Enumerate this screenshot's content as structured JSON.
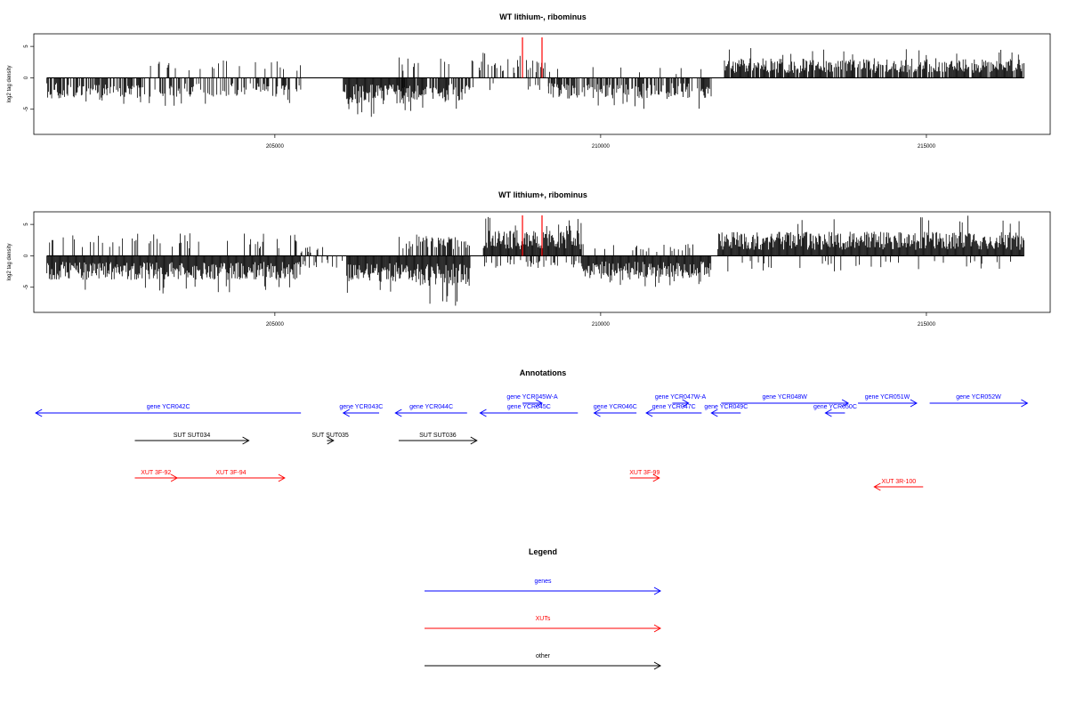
{
  "colors": {
    "genes": "#0000ff",
    "xuts": "#ff0000",
    "other": "#000000",
    "highlight": "#ff0000"
  },
  "chart_data": [
    {
      "type": "bar",
      "title": "WT lithium-, ribominus",
      "ylabel": "log2 tag density",
      "xlim": [
        201300,
        216900
      ],
      "ylim": [
        -9,
        7
      ],
      "x_ticks": [
        "205000",
        "210000",
        "215000"
      ],
      "y_ticks": [
        "5",
        "0",
        "-5"
      ],
      "data_range": [
        201500,
        216500
      ],
      "red_markers_x": [
        208800,
        209100
      ],
      "segments": [
        {
          "from": 201500,
          "to": 202950,
          "sign": -1,
          "density": 0.7,
          "amp": 2.8,
          "max": 4.5
        },
        {
          "from": 202950,
          "to": 205400,
          "sign": -1,
          "density": 0.5,
          "amp": 2.5,
          "max": 4.5,
          "up_density": 0.12,
          "up_amp": 2.5
        },
        {
          "from": 206050,
          "to": 207000,
          "sign": -1,
          "density": 1.0,
          "amp": 3.5,
          "max": 6.5
        },
        {
          "from": 206900,
          "to": 208000,
          "sign": -1,
          "density": 0.8,
          "amp": 3.2,
          "max": 5.5,
          "up_density": 0.08,
          "up_amp": 2.5
        },
        {
          "from": 208000,
          "to": 209200,
          "sign": 1,
          "density": 0.35,
          "amp": 2.5,
          "max": 4.5,
          "down_density": 0.1,
          "down_amp": 1.5
        },
        {
          "from": 209200,
          "to": 211700,
          "sign": -1,
          "density": 0.7,
          "amp": 2.8,
          "max": 5,
          "up_density": 0.05,
          "up_amp": 1.5
        },
        {
          "from": 211900,
          "to": 216500,
          "sign": 1,
          "density": 0.85,
          "amp": 2.6,
          "max": 4.8
        }
      ]
    },
    {
      "type": "bar",
      "title": "WT lithium+, ribominus",
      "ylabel": "log2 tag density",
      "xlim": [
        201300,
        216900
      ],
      "ylim": [
        -9,
        7
      ],
      "x_ticks": [
        "205000",
        "210000",
        "215000"
      ],
      "y_ticks": [
        "5",
        "0",
        "-5"
      ],
      "data_range": [
        201500,
        216500
      ],
      "red_markers_x": [
        208800,
        209100
      ],
      "segments": [
        {
          "from": 201500,
          "to": 205400,
          "sign": -1,
          "density": 1.0,
          "amp": 3.2,
          "max": 6,
          "up_density": 0.15,
          "up_amp": 2.8
        },
        {
          "from": 205400,
          "to": 206100,
          "sign": 1,
          "density": 0.25,
          "amp": 1.5,
          "max": 3,
          "down_density": 0.2,
          "down_amp": 1.5
        },
        {
          "from": 206100,
          "to": 206900,
          "sign": -1,
          "density": 1.0,
          "amp": 3.5,
          "max": 6.5
        },
        {
          "from": 206900,
          "to": 208000,
          "sign": -1,
          "density": 1.0,
          "amp": 4,
          "max": 8,
          "up_density": 0.6,
          "up_amp": 2.6
        },
        {
          "from": 208200,
          "to": 209700,
          "sign": 1,
          "density": 1.0,
          "amp": 3.4,
          "max": 6.2,
          "down_density": 0.25,
          "down_amp": 1.5
        },
        {
          "from": 209700,
          "to": 211700,
          "sign": -1,
          "density": 1.0,
          "amp": 3,
          "max": 5,
          "up_density": 0.15,
          "up_amp": 1.5
        },
        {
          "from": 211800,
          "to": 216500,
          "sign": 1,
          "density": 1.0,
          "amp": 3.2,
          "max": 6.5,
          "down_density": 0.08,
          "down_amp": 2
        }
      ]
    }
  ],
  "annotations": {
    "title": "Annotations",
    "genes": [
      {
        "label": "gene YCR042C",
        "from": 201330,
        "to": 205400,
        "dir": "left",
        "row": 1
      },
      {
        "label": "gene YCR043C",
        "from": 206050,
        "to": 206600,
        "dir": "left",
        "row": 1
      },
      {
        "label": "gene YCR044C",
        "from": 206850,
        "to": 207950,
        "dir": "left",
        "row": 1
      },
      {
        "label": "gene YCR045W-A",
        "from": 208800,
        "to": 209100,
        "dir": "right",
        "row": 0
      },
      {
        "label": "gene YCR045C",
        "from": 208150,
        "to": 209650,
        "dir": "left",
        "row": 1
      },
      {
        "label": "gene YCR046C",
        "from": 209900,
        "to": 210550,
        "dir": "left",
        "row": 1
      },
      {
        "label": "gene YCR047W-A",
        "from": 211100,
        "to": 211350,
        "dir": "right",
        "row": 0
      },
      {
        "label": "gene YCR047C",
        "from": 210700,
        "to": 211550,
        "dir": "left",
        "row": 1
      },
      {
        "label": "gene YCR048W",
        "from": 211850,
        "to": 213800,
        "dir": "right",
        "row": 0
      },
      {
        "label": "gene YCR049C",
        "from": 211700,
        "to": 212150,
        "dir": "left",
        "row": 1
      },
      {
        "label": "gene YCR050C",
        "from": 213450,
        "to": 213750,
        "dir": "left",
        "row": 1
      },
      {
        "label": "gene YCR051W",
        "from": 213950,
        "to": 214850,
        "dir": "right",
        "row": 0
      },
      {
        "label": "gene YCR052W",
        "from": 215050,
        "to": 216550,
        "dir": "right",
        "row": 0
      }
    ],
    "other": [
      {
        "label": "SUT SUT034",
        "from": 202850,
        "to": 204600,
        "dir": "right"
      },
      {
        "label": "SUT SUT035",
        "from": 205800,
        "to": 205900,
        "dir": "right"
      },
      {
        "label": "SUT SUT036",
        "from": 206900,
        "to": 208100,
        "dir": "right"
      }
    ],
    "xuts": [
      {
        "label": "XUT 3F-92",
        "from": 202850,
        "to": 203500,
        "dir": "right",
        "row": 0
      },
      {
        "label": "XUT 3F-94",
        "from": 203500,
        "to": 205150,
        "dir": "right",
        "row": 0
      },
      {
        "label": "XUT 3F-99",
        "from": 210450,
        "to": 210900,
        "dir": "right",
        "row": 0
      },
      {
        "label": "XUT 3R-100",
        "from": 214200,
        "to": 214950,
        "dir": "left",
        "row": 1
      }
    ]
  },
  "legend": {
    "title": "Legend",
    "items": [
      {
        "label": "genes",
        "color": "#0000ff"
      },
      {
        "label": "XUTs",
        "color": "#ff0000"
      },
      {
        "label": "other",
        "color": "#000000"
      }
    ]
  }
}
